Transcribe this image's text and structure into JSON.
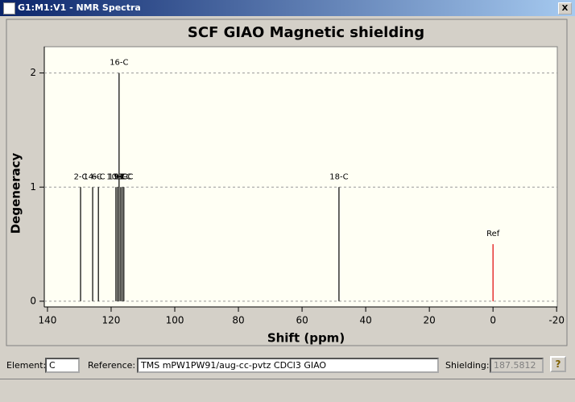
{
  "window": {
    "title": "G1:M1:V1 - NMR Spectra",
    "close": "X"
  },
  "chart_data": {
    "type": "stem",
    "title": "SCF GIAO Magnetic shielding",
    "x_label": "Shift (ppm)",
    "y_label": "Degeneracy",
    "x": [
      129.6,
      125.8,
      124.0,
      118.5,
      118.0,
      117.5,
      117.0,
      116.5,
      116.0,
      48.4,
      0
    ],
    "values": [
      1,
      1,
      1,
      1,
      1,
      2,
      1,
      1,
      1,
      1,
      0.5
    ],
    "labels": [
      "2-C",
      "14-C",
      "6-C",
      "10-C",
      "11-C",
      "16-C",
      "9-C",
      "13-C",
      "12-C",
      "18-C",
      "Ref"
    ],
    "colors": [
      "#000000",
      "#000000",
      "#000000",
      "#000000",
      "#000000",
      "#000000",
      "#000000",
      "#000000",
      "#000000",
      "#000000",
      "#e00000"
    ],
    "xlim": [
      141,
      -20.2
    ],
    "xticks": [
      140,
      120,
      100,
      80,
      60,
      40,
      20,
      0,
      -20
    ],
    "ylim": [
      -0.05,
      2.23
    ],
    "yticks": [
      0,
      1,
      2
    ],
    "grid": true
  },
  "controls": {
    "element_label": "Element:",
    "element_value": "C",
    "reference_label": "Reference:",
    "reference_value": "TMS mPW1PW91/aug-cc-pvtz CDCl3 GIAO",
    "shielding_label": "Shielding:",
    "shielding_value": "187.5812",
    "help": "?"
  }
}
